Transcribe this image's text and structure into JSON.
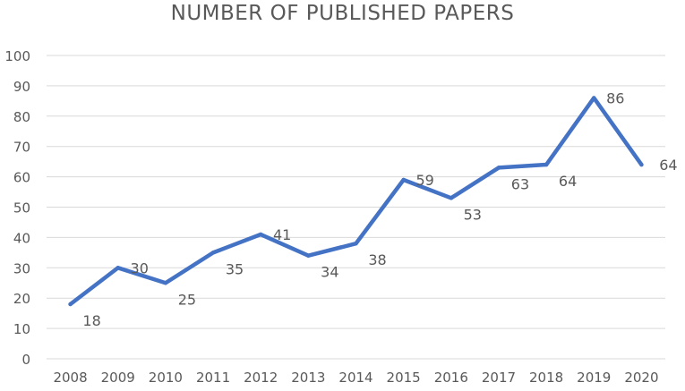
{
  "chart_data": {
    "type": "line",
    "title": "NUMBER OF PUBLISHED PAPERS",
    "xlabel": "",
    "ylabel": "",
    "categories": [
      "2008",
      "2009",
      "2010",
      "2011",
      "2012",
      "2013",
      "2014",
      "2015",
      "2016",
      "2017",
      "2018",
      "2019",
      "2020"
    ],
    "series": [
      {
        "values": [
          18,
          30,
          25,
          35,
          41,
          34,
          38,
          59,
          53,
          63,
          64,
          86,
          64
        ],
        "color": "#4472C4"
      }
    ],
    "data_labels": [
      "18",
      "30",
      "25",
      "35",
      "41",
      "34",
      "38",
      "59",
      "53",
      "63",
      "64",
      "86",
      "64"
    ],
    "ylim": [
      0,
      100
    ],
    "yticks": [
      "0",
      "10",
      "20",
      "30",
      "40",
      "50",
      "60",
      "70",
      "80",
      "90",
      "100"
    ],
    "grid": true,
    "legend": "none",
    "colors": {
      "line": "#4472C4",
      "grid": "#d9d9d9",
      "text": "#595959"
    }
  }
}
